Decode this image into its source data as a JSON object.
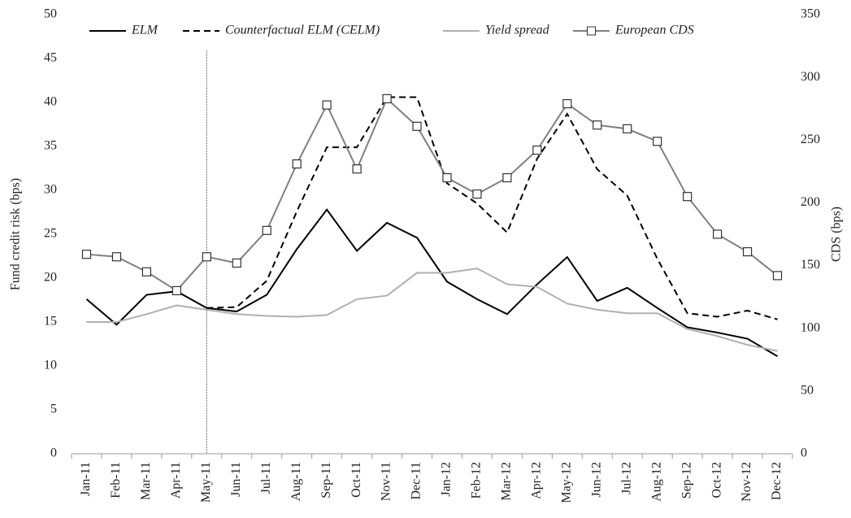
{
  "chart_data": {
    "type": "line",
    "categories": [
      "Jan-11",
      "Feb-11",
      "Mar-11",
      "Apr-11",
      "May-11",
      "Jun-11",
      "Jul-11",
      "Aug-11",
      "Sep-11",
      "Oct-11",
      "Nov-11",
      "Dec-11",
      "Jan-12",
      "Feb-12",
      "Mar-12",
      "Apr-12",
      "May-12",
      "Jun-12",
      "Jul-12",
      "Aug-12",
      "Sep-12",
      "Oct-12",
      "Nov-12",
      "Dec-12"
    ],
    "y_label": "Fund credit risk (bps)",
    "y2_label": "CDS (bps)",
    "ylim": [
      0,
      50
    ],
    "yticks": [
      0,
      5,
      10,
      15,
      20,
      25,
      30,
      35,
      40,
      45,
      50
    ],
    "y2lim": [
      0,
      350
    ],
    "y2ticks": [
      0,
      50,
      100,
      150,
      200,
      250,
      300,
      350
    ],
    "series": [
      {
        "name": "ELM",
        "color": "#000000",
        "dash": "solid",
        "values": [
          17.6,
          14.7,
          18.1,
          18.5,
          16.6,
          16.2,
          18.1,
          23.3,
          27.8,
          23.1,
          26.3,
          24.6,
          19.6,
          17.6,
          15.9,
          19.3,
          22.4,
          17.4,
          18.9,
          16.6,
          14.4,
          13.8,
          13.1,
          11.1
        ]
      },
      {
        "name": "Counterfactual ELM (CELM)",
        "color": "#000000",
        "dash": "dashed",
        "values": [
          null,
          null,
          null,
          null,
          16.6,
          16.7,
          19.7,
          27.6,
          34.9,
          34.9,
          40.6,
          40.6,
          30.8,
          28.5,
          25.2,
          33.6,
          38.7,
          32.4,
          29.4,
          22.2,
          16.0,
          15.6,
          16.3,
          15.3
        ]
      },
      {
        "name": "Yield spread",
        "color": "#b0b0b0",
        "dash": "solid",
        "values": [
          15,
          15,
          15.9,
          16.9,
          16.4,
          15.9,
          15.7,
          15.6,
          15.8,
          17.6,
          18,
          20.6,
          20.6,
          21.1,
          19.3,
          19,
          17.1,
          16.4,
          16,
          16,
          14.2,
          13.4,
          12.4,
          11.7
        ]
      },
      {
        "name": "European CDS",
        "color": "#808080",
        "dash": "solid",
        "marker": "square",
        "axis": "y2",
        "values": [
          159,
          157,
          145,
          130,
          157,
          152,
          178,
          231,
          278,
          227,
          283,
          261,
          220,
          207,
          220,
          242,
          279,
          262,
          259,
          249,
          205,
          175,
          161,
          142
        ]
      }
    ]
  }
}
